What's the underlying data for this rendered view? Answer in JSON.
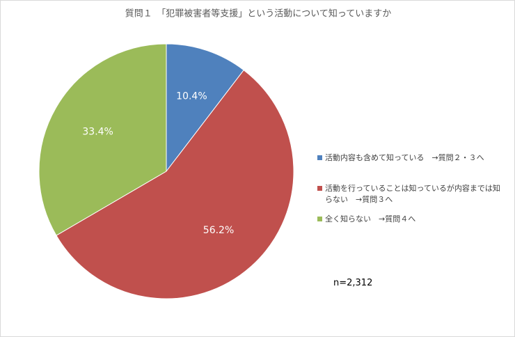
{
  "chart_data": {
    "type": "pie",
    "title": "質問１　「犯罪被害者等支援」という活動について知っていますか",
    "series": [
      {
        "name": "活動内容も含めて知っている　→質問２・３へ",
        "color": "#4f81bd"
      },
      {
        "name": "活動を行っていることは知っているが内容までは知らない　→質問３へ",
        "color": "#c0504d"
      },
      {
        "name": "全く知らない　→質問４へ",
        "color": "#9bbb59"
      }
    ],
    "values": [
      10.4,
      56.2,
      33.4
    ],
    "value_labels": [
      "10.4%",
      "56.2%",
      "33.4%"
    ],
    "annotation": "n=2,312",
    "legend": "right"
  }
}
